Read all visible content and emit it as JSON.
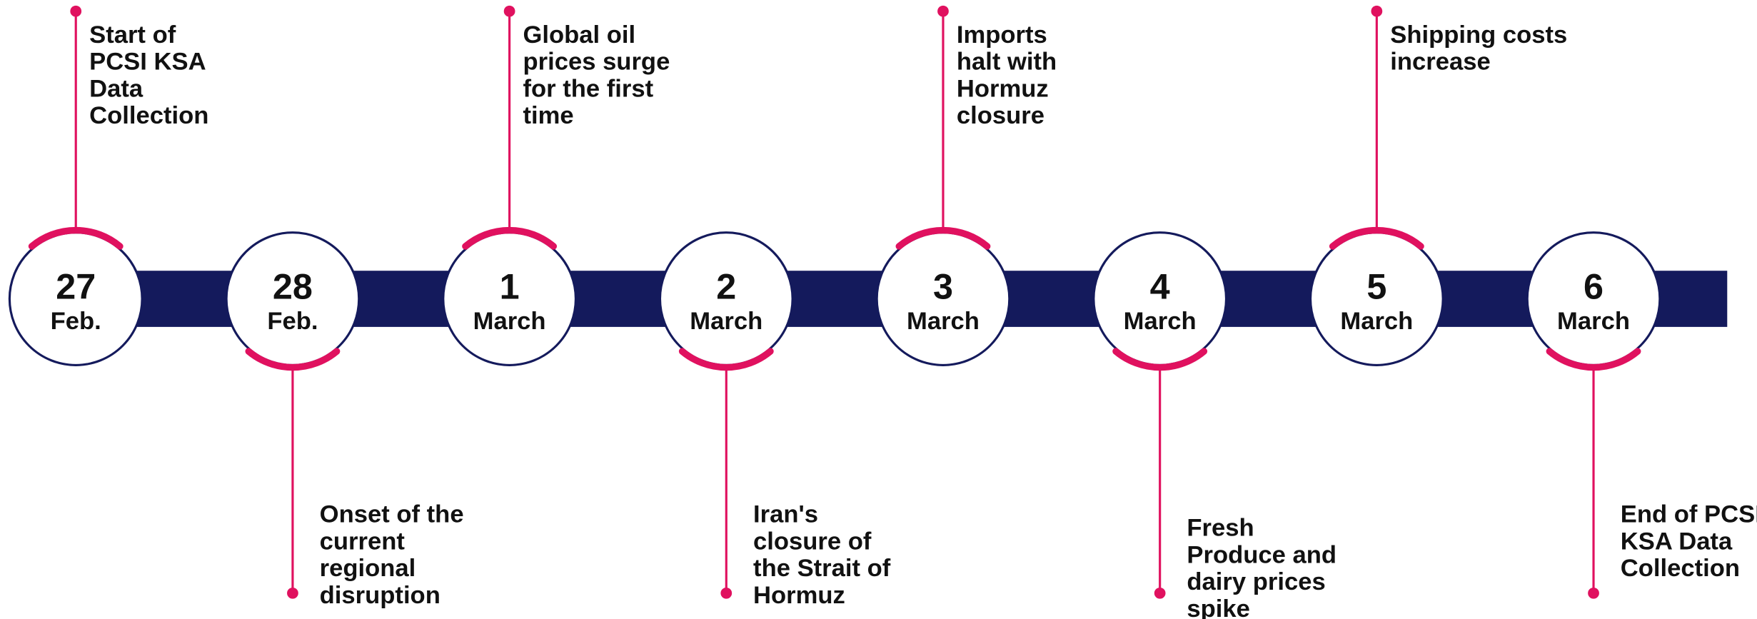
{
  "events": [
    {
      "day": "27",
      "month": "Feb.",
      "lines": [
        "Start of",
        "PCSI KSA",
        "Data",
        "Collection"
      ]
    },
    {
      "day": "28",
      "month": "Feb.",
      "lines": [
        "Onset of the",
        "current",
        "regional",
        "disruption"
      ]
    },
    {
      "day": "1",
      "month": "March",
      "lines": [
        "Global oil",
        "prices surge",
        "for the first",
        "time"
      ]
    },
    {
      "day": "2",
      "month": "March",
      "lines": [
        "Iran's",
        "closure of",
        "the Strait of",
        "Hormuz"
      ]
    },
    {
      "day": "3",
      "month": "March",
      "lines": [
        "Imports",
        "halt with",
        "Hormuz",
        "closure"
      ]
    },
    {
      "day": "4",
      "month": "March",
      "lines": [
        "Fresh",
        "Produce and",
        "dairy prices",
        "spike"
      ]
    },
    {
      "day": "5",
      "month": "March",
      "lines": [
        "Shipping costs",
        "increase"
      ]
    },
    {
      "day": "6",
      "month": "March",
      "lines": [
        "End of PCSI",
        "KSA Data",
        "Collection"
      ]
    }
  ]
}
